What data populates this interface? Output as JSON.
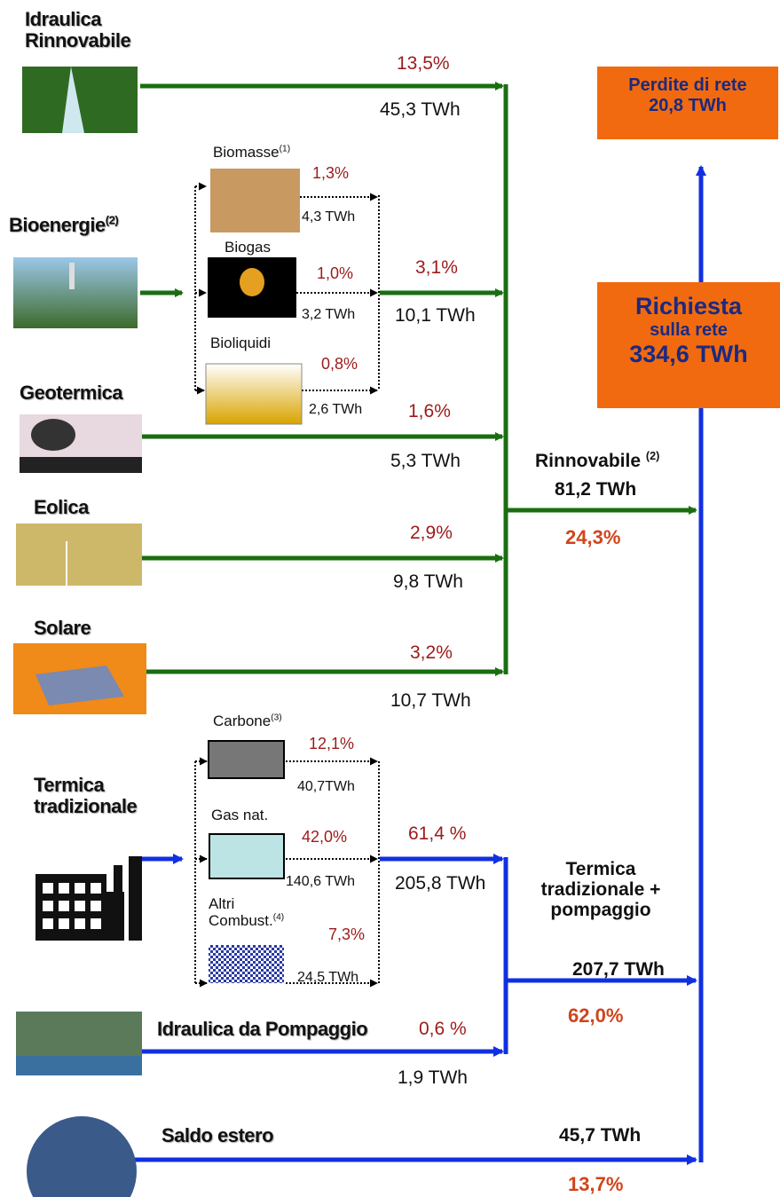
{
  "renewable_sources": [
    {
      "label_lines": [
        "Idraulica",
        "Rinnovabile"
      ],
      "share": "13,5%",
      "energy": "45,3 TWh"
    },
    {
      "label_lines": [
        "Bioenergie"
      ],
      "note": "(2)",
      "share": "3,1%",
      "energy": "10,1 TWh"
    },
    {
      "label_lines": [
        "Geotermica"
      ],
      "share": "1,6%",
      "energy": "5,3 TWh"
    },
    {
      "label_lines": [
        "Eolica"
      ],
      "share": "2,9%",
      "energy": "9,8 TWh"
    },
    {
      "label_lines": [
        "Solare"
      ],
      "share": "3,2%",
      "energy": "10,7 TWh"
    }
  ],
  "bioenergy_parts": [
    {
      "label": "Biomasse",
      "note": "(1)",
      "share": "1,3%",
      "energy": "4,3 TWh"
    },
    {
      "label": "Biogas",
      "share": "1,0%",
      "energy": "3,2 TWh"
    },
    {
      "label": "Bioliquidi",
      "share": "0,8%",
      "energy": "2,6 TWh"
    }
  ],
  "thermal": {
    "label_lines": [
      "Termica",
      "tradizionale"
    ],
    "share": "61,4 %",
    "energy": "205,8 TWh"
  },
  "thermal_parts": [
    {
      "label_lines": [
        "Carbone"
      ],
      "note": "(3)",
      "share": "12,1%",
      "energy": "40,7TWh"
    },
    {
      "label_lines": [
        "Gas nat."
      ],
      "share": "42,0%",
      "energy": "140,6 TWh"
    },
    {
      "label_lines": [
        "Altri",
        "Combust."
      ],
      "note": "(4)",
      "share": "7,3%",
      "energy": "24,5 TWh"
    }
  ],
  "pumped": {
    "label": "Idraulica da Pompaggio",
    "share": "0,6 %",
    "energy": "1,9 TWh"
  },
  "foreign": {
    "label": "Saldo estero",
    "energy": "45,7 TWh",
    "share": "13,7%"
  },
  "renewable_total": {
    "label": "Rinnovabile",
    "note": "(2)",
    "energy": "81,2 TWh",
    "share": "24,3%"
  },
  "thermal_total": {
    "label_lines": [
      "Termica",
      "tradizionale +",
      "pompaggio"
    ],
    "energy": "207,7 TWh",
    "share": "62,0%"
  },
  "demand": {
    "label_lines": [
      "Richiesta",
      "sulla rete"
    ],
    "energy": "334,6 TWh"
  },
  "losses": {
    "label": "Perdite di rete",
    "energy": "20,8 TWh"
  }
}
